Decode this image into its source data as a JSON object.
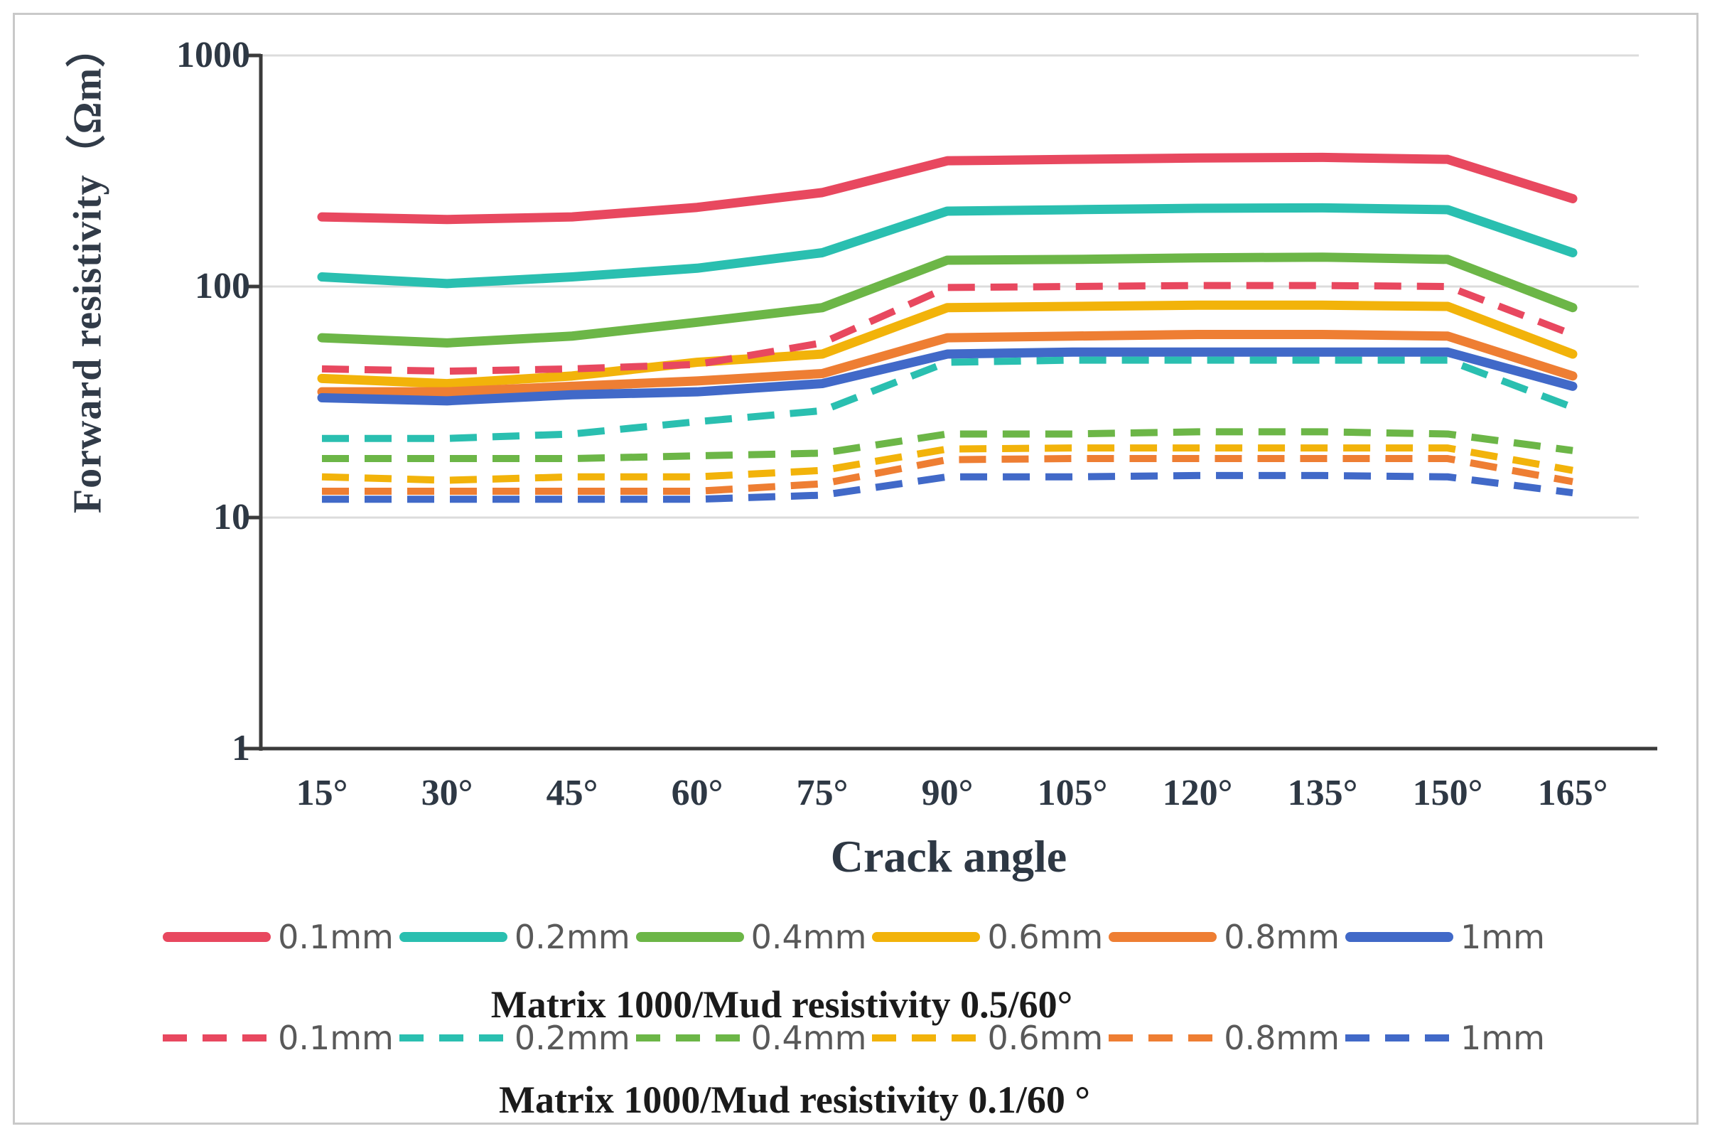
{
  "chart_data": {
    "type": "line",
    "title": "",
    "xlabel": "Crack angle",
    "ylabel": "Forward resistivity（Ωm）",
    "x_categories": [
      "15°",
      "30°",
      "45°",
      "60°",
      "75°",
      "90°",
      "105°",
      "120°",
      "135°",
      "150°",
      "165°"
    ],
    "y_axis": {
      "scale": "log",
      "range": [
        1,
        1000
      ],
      "tick_labels": [
        "1000",
        "100",
        "10",
        "1"
      ],
      "tick_values": [
        1000,
        100,
        10,
        1
      ],
      "grid_values": [
        1000,
        100,
        10
      ],
      "grid_color": "#dcdcdc",
      "axis_color": "#3b3b3b"
    },
    "legend_position": "bottom",
    "groups": [
      {
        "name": "Matrix 1000/Mud resistivity 0.5/60°",
        "line_style": "solid",
        "series": [
          {
            "name": "0.1mm",
            "color": "#e8485f",
            "values": [
              200,
              195,
              200,
              220,
              255,
              350,
              355,
              360,
              362,
              355,
              240
            ]
          },
          {
            "name": "0.2mm",
            "color": "#2abfb0",
            "values": [
              110,
              103,
              110,
              120,
              140,
              212,
              215,
              218,
              219,
              215,
              140
            ]
          },
          {
            "name": "0.4mm",
            "color": "#6cb647",
            "values": [
              60,
              57,
              61,
              70,
              81,
              130,
              131,
              133,
              134,
              131,
              81
            ]
          },
          {
            "name": "0.6mm",
            "color": "#f2b30a",
            "values": [
              40,
              38,
              41,
              47,
              51,
              81,
              82,
              83,
              83,
              82,
              51
            ]
          },
          {
            "name": "0.8mm",
            "color": "#ee7e33",
            "values": [
              35,
              35,
              37,
              39,
              42,
              60,
              61,
              62,
              62,
              61,
              41
            ]
          },
          {
            "name": "1mm",
            "color": "#4169c8",
            "values": [
              33,
              32,
              34,
              35,
              38,
              51,
              52,
              52,
              52,
              52,
              37
            ]
          }
        ]
      },
      {
        "name": "Matrix 1000/Mud resistivity 0.1/60 °",
        "line_style": "dashed",
        "series": [
          {
            "name": "0.1mm",
            "color": "#e8485f",
            "values": [
              44,
              43,
              44,
              46,
              57,
              99,
              100,
              101,
              101,
              100,
              62
            ]
          },
          {
            "name": "0.2mm",
            "color": "#2abfb0",
            "values": [
              22,
              22,
              23,
              26,
              29,
              47,
              48,
              48,
              48,
              48,
              30
            ]
          },
          {
            "name": "0.4mm",
            "color": "#6cb647",
            "values": [
              18,
              18,
              18,
              18.5,
              19,
              23,
              23,
              23.5,
              23.5,
              23,
              19.5
            ]
          },
          {
            "name": "0.6mm",
            "color": "#f2b30a",
            "values": [
              15,
              14.5,
              15,
              15,
              16,
              19.8,
              20,
              20,
              20,
              20,
              16
            ]
          },
          {
            "name": "0.8mm",
            "color": "#ee7e33",
            "values": [
              13,
              13,
              13,
              13,
              14,
              17.8,
              18,
              18,
              18,
              18,
              14.3
            ]
          },
          {
            "name": "1mm",
            "color": "#4169c8",
            "values": [
              12,
              12,
              12,
              12,
              12.5,
              15,
              15,
              15.2,
              15.2,
              15,
              12.8
            ]
          }
        ]
      }
    ]
  }
}
